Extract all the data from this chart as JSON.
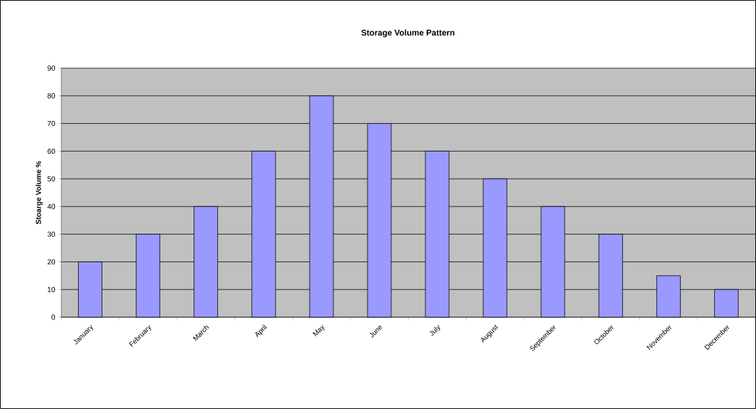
{
  "chart_data": {
    "type": "bar",
    "title": "Storage Volume Pattern",
    "ylabel": "Stoarge Volume %",
    "categories": [
      "January",
      "February",
      "March",
      "April",
      "May",
      "June",
      "July",
      "August",
      "September",
      "October",
      "November",
      "December"
    ],
    "values": [
      20,
      30,
      40,
      60,
      80,
      70,
      60,
      50,
      40,
      30,
      15,
      10
    ],
    "color": "#9999ff",
    "ylim": [
      0,
      90
    ],
    "yticks": [
      0,
      10,
      20,
      30,
      40,
      50,
      60,
      70,
      80,
      90
    ],
    "grid": "y"
  }
}
